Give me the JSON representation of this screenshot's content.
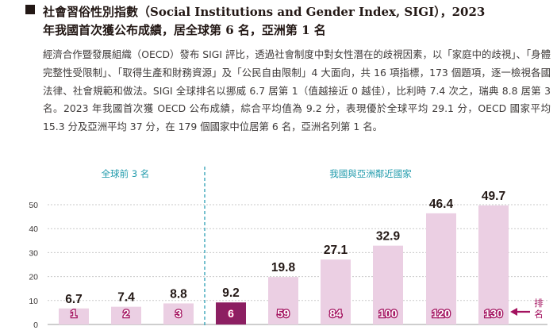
{
  "heading": {
    "line1": "社會習俗性別指數（Social Institutions and Gender Index, SIGI），2023",
    "line2": "年我國首次獲公布成績，居全球第 6 名，亞洲第 1 名"
  },
  "paragraph": "經濟合作暨發展組織（OECD）發布 SIGI 評比，透過社會制度中對女性潛在的歧視因素，以「家庭中的歧視」、「身體完整性受限制」、「取得生產和財務資源」及「公民自由限制」4 大面向，共 16 項指標，173 個題項，逐一檢視各國法律、社會規範和做法。SIGI 全球排名以挪威 6.7 居第 1（值越接近 0 越佳），比利時 7.4 次之，瑞典 8.8 居第 3 名。2023 年我國首次獲 OECD 公布成績，綜合平均值為 9.2 分，表現優於全球平均 29.1 分，OECD 國家平均 15.3 分及亞洲平均 37 分，在 179 個國家中位居第 6 名，亞洲名列第 1 名。",
  "chart_data": {
    "type": "bar",
    "groups": [
      {
        "label": "全球前 3 名",
        "bar_indices": [
          0,
          1,
          2
        ]
      },
      {
        "label": "我國與亞洲鄰近國家",
        "bar_indices": [
          3,
          4,
          5,
          6,
          7,
          8
        ]
      }
    ],
    "categories": [
      "",
      "",
      "",
      "",
      "",
      "",
      "",
      "",
      ""
    ],
    "values": [
      6.7,
      7.4,
      8.8,
      9.2,
      19.8,
      27.1,
      32.9,
      46.4,
      49.7
    ],
    "value_labels": [
      "6.7",
      "7.4",
      "8.8",
      "9.2",
      "19.8",
      "27.1",
      "32.9",
      "46.4",
      "49.7"
    ],
    "ranks": [
      "1",
      "2",
      "3",
      "6",
      "59",
      "84",
      "100",
      "120",
      "130"
    ],
    "highlight_index": 3,
    "ylim": [
      0,
      50
    ],
    "yticks": [
      "0",
      "10",
      "20",
      "30",
      "40",
      "50"
    ],
    "rank_legend": "排名",
    "grid": true,
    "colors": {
      "bar": "#ebcfe3",
      "highlight": "#8c1f62",
      "rank_outline": "#a3125f",
      "divider": "#3aa6b9",
      "grid": "#c9c9c9"
    }
  }
}
